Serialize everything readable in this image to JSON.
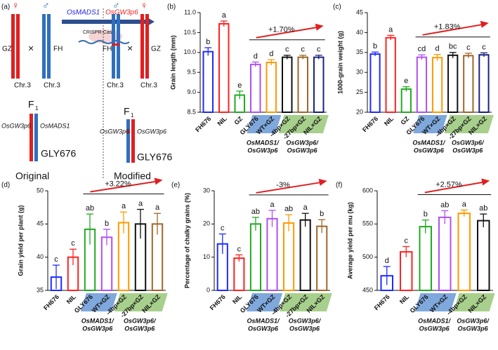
{
  "diagram": {
    "panel": "(a)",
    "cross": "×",
    "parents_original": {
      "female_symbol": "♀",
      "male_symbol": "♂",
      "left": "GZ",
      "right": "FH",
      "chr_left": "Chr.3",
      "chr_right": "Chr.3"
    },
    "arrow": {
      "gene1": "OsMADS1",
      "gene2": "OsGW3p6",
      "tool": "CRISPR-Cas9"
    },
    "parents_modified": {
      "male_symbol": "♂",
      "female_symbol": "♀",
      "left": "FH",
      "right": "GZ",
      "chr_left": "Chr.3",
      "chr_right": "Chr.3"
    },
    "f1_original": {
      "label": "F",
      "sub": "1",
      "left_gene": "OsGW3p6",
      "right_gene": "OsMADS1",
      "hybrid": "GLY676",
      "caption": "Original"
    },
    "f1_modified": {
      "label": "F",
      "sub": "1",
      "left_gene": "OsGW3p6",
      "right_gene": "OsGW3p6",
      "hybrid": "GLY676",
      "caption": "Modified"
    }
  },
  "chart_data": [
    {
      "type": "bar",
      "panel": "(b)",
      "ylabel": "Grain length  (mm)",
      "categories": [
        "FH676",
        "NIL",
        "GZ",
        "GLY676",
        "WT×GZ",
        "-4bp×GZ",
        "-27bp×GZ",
        "NIL×GZ"
      ],
      "values": [
        10.02,
        10.72,
        8.93,
        9.7,
        9.75,
        9.88,
        9.88,
        9.88
      ],
      "errors": [
        0.1,
        0.07,
        0.1,
        0.06,
        0.07,
        0.05,
        0.05,
        0.05
      ],
      "significance": [
        "b",
        "a",
        "e",
        "d",
        "d",
        "c",
        "c",
        "c"
      ],
      "colors": [
        "#1f2bff",
        "#ff2222",
        "#22aa22",
        "#b04ff0",
        "#ff9a00",
        "#111111",
        "#a0662a",
        "#1a237e"
      ],
      "ylim": [
        8.5,
        11.0
      ],
      "yticks": [
        {
          "value": 8.5,
          "label": "8.5"
        },
        {
          "value": 9,
          "label": "9.0"
        },
        {
          "value": 9.5,
          "label": "9.5"
        },
        {
          "value": 10,
          "label": "10.0"
        },
        {
          "value": 10.5,
          "label": "10.5"
        },
        {
          "value": 11,
          "label": "11.0"
        }
      ],
      "annotation": "+1.70%",
      "groups": [
        {
          "members": [
            "GLY676",
            "WT×GZ"
          ],
          "lines": [
            "OsMADS1/",
            "OsGW3p6"
          ]
        },
        {
          "members": [
            "-4bp×GZ",
            "-27bp×GZ",
            "NIL×GZ"
          ],
          "lines": [
            "OsGW3p6/",
            "OsGW3p6"
          ]
        }
      ]
    },
    {
      "type": "bar",
      "panel": "(c)",
      "ylabel": "1000-grain weight  (g)",
      "categories": [
        "FH676",
        "NIL",
        "GZ",
        "GLY676",
        "WT×GZ",
        "-4bp×GZ",
        "-27bp×GZ",
        "NIL×GZ"
      ],
      "values": [
        34.6,
        38.7,
        25.8,
        33.8,
        33.7,
        34.3,
        34.2,
        34.4
      ],
      "errors": [
        0.5,
        0.6,
        0.6,
        0.6,
        0.8,
        0.7,
        0.6,
        0.5
      ],
      "significance": [
        "b",
        "a",
        "e",
        "cd",
        "d",
        "bc",
        "c",
        "c"
      ],
      "colors": [
        "#1f2bff",
        "#ff2222",
        "#22aa22",
        "#b04ff0",
        "#ff9a00",
        "#111111",
        "#a0662a",
        "#1a237e"
      ],
      "ylim": [
        20,
        45
      ],
      "yticks": [
        20,
        25,
        30,
        35,
        40,
        45
      ],
      "annotation": "+1.83%",
      "groups": [
        {
          "members": [
            "GLY676",
            "WT×GZ"
          ],
          "lines": [
            "OsMADS1/",
            "OsGW3p6"
          ]
        },
        {
          "members": [
            "-4bp×GZ",
            "-27bp×GZ",
            "NIL×GZ"
          ],
          "lines": [
            "OsGW3p6/",
            "OsGW3p6"
          ]
        }
      ]
    },
    {
      "type": "bar",
      "panel": "(d)",
      "ylabel": "Grain yield per plant  (g)",
      "categories": [
        "FH676",
        "NIL",
        "GLY676",
        "WT×GZ",
        "-4bp×GZ",
        "-27bp×GZ",
        "NIL×GZ"
      ],
      "values": [
        37,
        40,
        44.2,
        43,
        45.2,
        45,
        45
      ],
      "errors": [
        1.8,
        1.2,
        2.3,
        1.2,
        1.6,
        2.2,
        1.6
      ],
      "significance": [
        "c",
        "c",
        "ab",
        "b",
        "a",
        "a",
        "a"
      ],
      "colors": [
        "#1f2bff",
        "#ff2222",
        "#22aa22",
        "#b04ff0",
        "#ff9a00",
        "#111111",
        "#a0662a"
      ],
      "ylim": [
        35,
        50
      ],
      "yticks": [
        35,
        40,
        45,
        50
      ],
      "annotation": "+3.22%",
      "groups": [
        {
          "members": [
            "GLY676",
            "WT×GZ"
          ],
          "lines": [
            "OsMADS1/",
            "OsGW3p6"
          ]
        },
        {
          "members": [
            "-4bp×GZ",
            "-27bp×GZ",
            "NIL×GZ"
          ],
          "lines": [
            "OsGW3p6/",
            "OsGW3p6"
          ]
        }
      ]
    },
    {
      "type": "bar",
      "panel": "(e)",
      "ylabel": "Percentage of chalky grains (%)",
      "categories": [
        "FH676",
        "NIL",
        "GLY676",
        "WT×GZ",
        "-4bp×GZ",
        "-27bp×GZ",
        "NIL×GZ"
      ],
      "values": [
        14,
        9.7,
        20,
        21.6,
        20.3,
        21.2,
        19.3
      ],
      "errors": [
        3,
        1,
        2,
        2.5,
        2.5,
        2,
        2
      ],
      "significance": [
        "c",
        "c",
        "ab",
        "a",
        "ab",
        "a",
        "b"
      ],
      "colors": [
        "#1f2bff",
        "#ff2222",
        "#22aa22",
        "#b04ff0",
        "#ff9a00",
        "#111111",
        "#a0662a"
      ],
      "ylim": [
        0,
        30
      ],
      "yticks": [
        0,
        10,
        20,
        30
      ],
      "annotation": "-3%",
      "groups": [
        {
          "members": [
            "GLY676",
            "WT×GZ"
          ],
          "lines": [
            "OsMADS1/",
            "OsGW3p6"
          ]
        },
        {
          "members": [
            "-4bp×GZ",
            "-27bp×GZ",
            "NIL×GZ"
          ],
          "lines": [
            "OsGW3p6/",
            "OsGW3p6"
          ]
        }
      ]
    },
    {
      "type": "bar",
      "panel": "(f)",
      "ylabel": "Average yield per mu  (kg)",
      "categories": [
        "FH676",
        "NIL",
        "GLY676",
        "WT×GZ",
        "-4bp×GZ",
        "NIL×GZ"
      ],
      "values": [
        472,
        508,
        546,
        560,
        566,
        555
      ],
      "errors": [
        14,
        8,
        10,
        10,
        5,
        10
      ],
      "significance": [
        "d",
        "c",
        "b",
        "ab",
        "a",
        "ab"
      ],
      "colors": [
        "#1f2bff",
        "#ff2222",
        "#22aa22",
        "#b04ff0",
        "#ff9a00",
        "#111111"
      ],
      "ylim": [
        450,
        600
      ],
      "yticks": [
        450,
        500,
        550,
        600
      ],
      "annotation": "+2.57%",
      "groups": [
        {
          "members": [
            "GLY676",
            "WT×GZ"
          ],
          "lines": [
            "OsMADS1/",
            "OsGW3p6"
          ]
        },
        {
          "members": [
            "-4bp×GZ",
            "NIL×GZ"
          ],
          "lines": [
            "OsGW3p6/",
            "OsGW3p6"
          ]
        }
      ]
    }
  ]
}
